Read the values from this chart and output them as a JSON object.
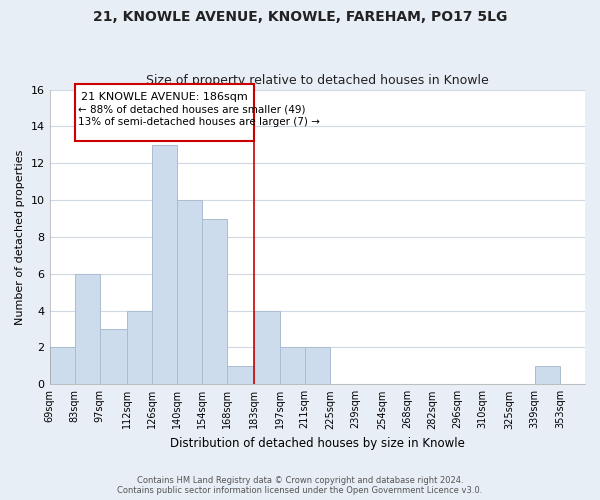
{
  "title": "21, KNOWLE AVENUE, KNOWLE, FAREHAM, PO17 5LG",
  "subtitle": "Size of property relative to detached houses in Knowle",
  "xlabel": "Distribution of detached houses by size in Knowle",
  "ylabel": "Number of detached properties",
  "bar_color": "#ccdcec",
  "bar_edgecolor": "#aabdd0",
  "grid_color": "#d0d8e4",
  "bg_color": "#e8eef5",
  "plot_bg_color": "#ffffff",
  "bin_labels": [
    "69sqm",
    "83sqm",
    "97sqm",
    "112sqm",
    "126sqm",
    "140sqm",
    "154sqm",
    "168sqm",
    "183sqm",
    "197sqm",
    "211sqm",
    "225sqm",
    "239sqm",
    "254sqm",
    "268sqm",
    "282sqm",
    "296sqm",
    "310sqm",
    "325sqm",
    "339sqm",
    "353sqm"
  ],
  "bin_edges": [
    69,
    83,
    97,
    112,
    126,
    140,
    154,
    168,
    183,
    197,
    211,
    225,
    239,
    254,
    268,
    282,
    296,
    310,
    325,
    339,
    353,
    367
  ],
  "counts": [
    2,
    6,
    3,
    4,
    13,
    10,
    9,
    1,
    4,
    2,
    2,
    0,
    0,
    0,
    0,
    0,
    0,
    0,
    0,
    1,
    0
  ],
  "vline_x": 183,
  "vline_color": "#cc0000",
  "annotation_title": "21 KNOWLE AVENUE: 186sqm",
  "annotation_line1": "← 88% of detached houses are smaller (49)",
  "annotation_line2": "13% of semi-detached houses are larger (7) →",
  "annotation_box_color": "#ffffff",
  "annotation_border_color": "#cc0000",
  "ylim": [
    0,
    16
  ],
  "yticks": [
    0,
    2,
    4,
    6,
    8,
    10,
    12,
    14,
    16
  ],
  "footer1": "Contains HM Land Registry data © Crown copyright and database right 2024.",
  "footer2": "Contains public sector information licensed under the Open Government Licence v3.0."
}
